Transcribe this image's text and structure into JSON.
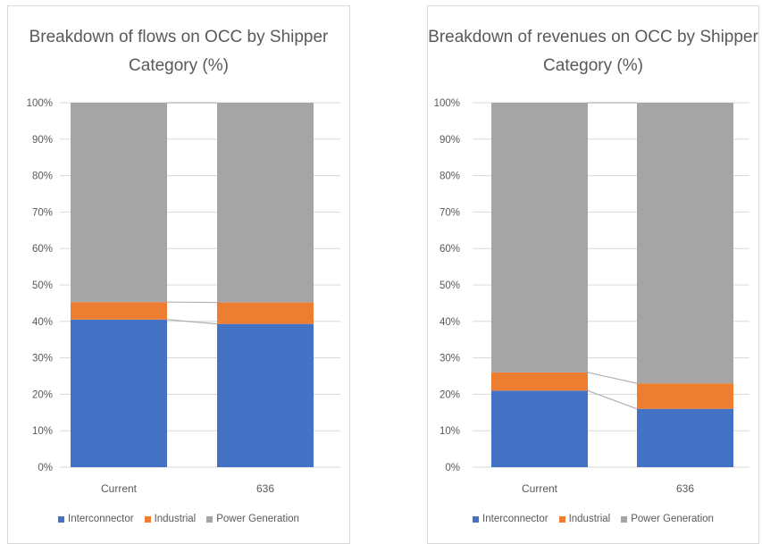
{
  "colors": {
    "interconnector": "#4472c4",
    "industrial": "#ed7d31",
    "power_generation": "#a5a5a5",
    "grid": "#d9d9d9",
    "text": "#595959"
  },
  "chart_data": [
    {
      "type": "bar",
      "stacked": "percent",
      "title": "Breakdown of flows on OCC by Shipper Category (%)",
      "title_lines": [
        "Breakdown of flows on OCC by Shipper",
        "Category (%)"
      ],
      "categories": [
        "Current",
        "636"
      ],
      "y_ticks": [
        "0%",
        "10%",
        "20%",
        "30%",
        "40%",
        "50%",
        "60%",
        "70%",
        "80%",
        "90%",
        "100%"
      ],
      "ylim": [
        0,
        100
      ],
      "grid": true,
      "legend_position": "bottom",
      "series": [
        {
          "name": "Interconnector",
          "color_key": "interconnector",
          "values": [
            40.5,
            39.3
          ]
        },
        {
          "name": "Industrial",
          "color_key": "industrial",
          "values": [
            4.8,
            5.9
          ]
        },
        {
          "name": "Power Generation",
          "color_key": "power_generation",
          "values": [
            54.7,
            54.8
          ]
        }
      ]
    },
    {
      "type": "bar",
      "stacked": "percent",
      "title": "Breakdown of revenues on OCC by Shipper Category (%)",
      "title_lines": [
        "Breakdown of revenues on OCC by Shipper",
        "Category (%)"
      ],
      "categories": [
        "Current",
        "636"
      ],
      "y_ticks": [
        "0%",
        "10%",
        "20%",
        "30%",
        "40%",
        "50%",
        "60%",
        "70%",
        "80%",
        "90%",
        "100%"
      ],
      "ylim": [
        0,
        100
      ],
      "grid": true,
      "legend_position": "bottom",
      "series": [
        {
          "name": "Interconnector",
          "color_key": "interconnector",
          "values": [
            21.0,
            16.0
          ]
        },
        {
          "name": "Industrial",
          "color_key": "industrial",
          "values": [
            5.0,
            7.0
          ]
        },
        {
          "name": "Power Generation",
          "color_key": "power_generation",
          "values": [
            74.0,
            77.0
          ]
        }
      ]
    }
  ]
}
